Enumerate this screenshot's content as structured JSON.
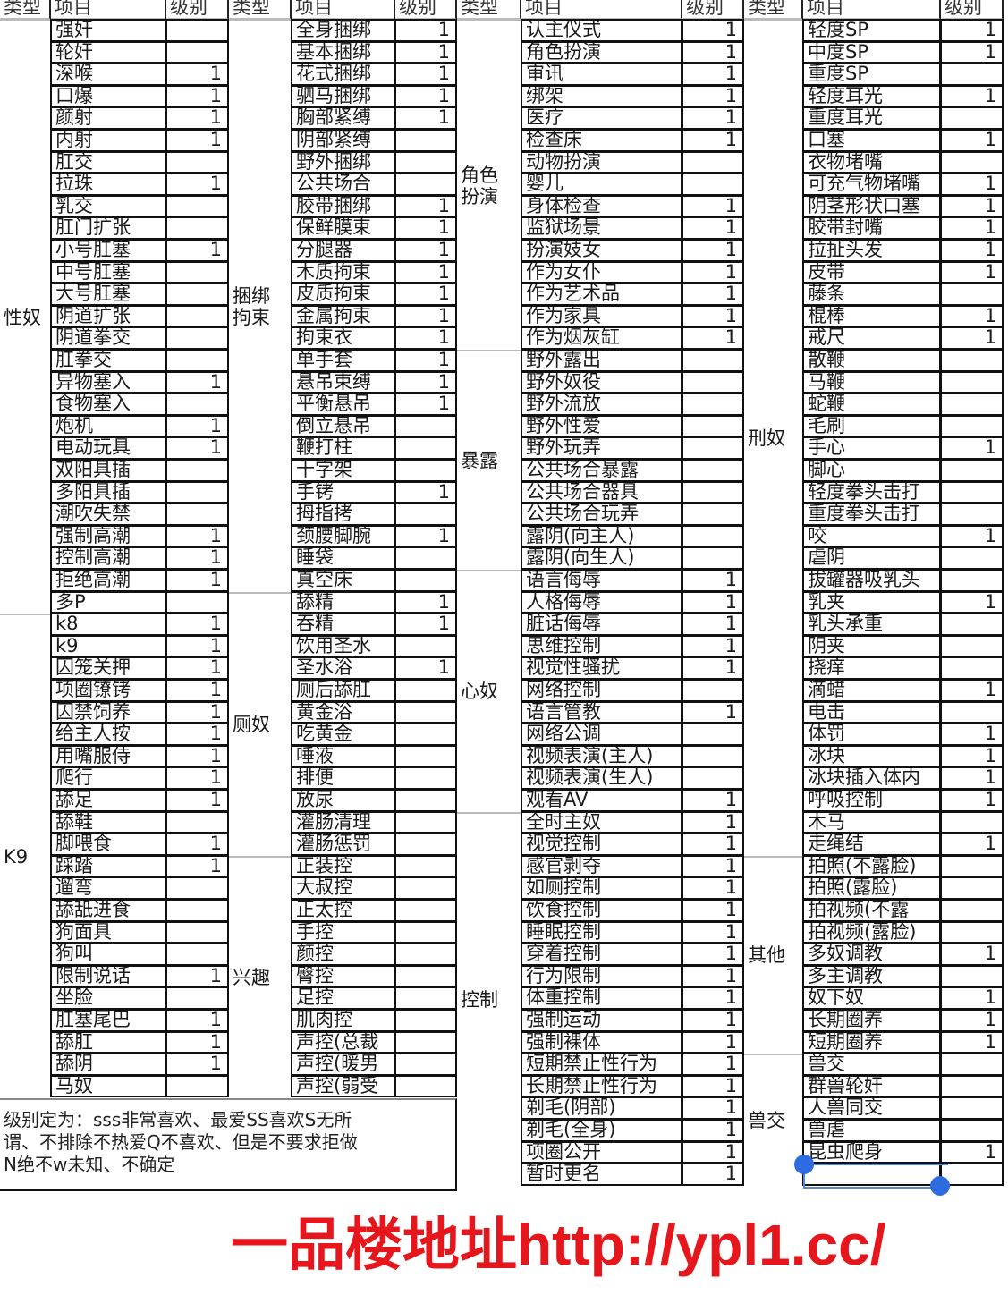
{
  "headers": {
    "type": "类型",
    "item": "项目",
    "level": "级别"
  },
  "columns": [
    {
      "groups": [
        {
          "type": "性奴",
          "items": [
            {
              "name": "强奸",
              "level": ""
            },
            {
              "name": "轮奸",
              "level": ""
            },
            {
              "name": "深喉",
              "level": "1"
            },
            {
              "name": "口爆",
              "level": "1"
            },
            {
              "name": "颜射",
              "level": "1"
            },
            {
              "name": "内射",
              "level": "1"
            },
            {
              "name": "肛交",
              "level": ""
            },
            {
              "name": "拉珠",
              "level": "1"
            },
            {
              "name": "乳交",
              "level": ""
            },
            {
              "name": "肛门扩张",
              "level": ""
            },
            {
              "name": "小号肛塞",
              "level": "1"
            },
            {
              "name": "中号肛塞",
              "level": ""
            },
            {
              "name": "大号肛塞",
              "level": ""
            },
            {
              "name": "阴道扩张",
              "level": ""
            },
            {
              "name": "阴道拳交",
              "level": ""
            },
            {
              "name": "肛拳交",
              "level": ""
            },
            {
              "name": "异物塞入",
              "level": "1"
            },
            {
              "name": "食物塞入",
              "level": ""
            },
            {
              "name": "炮机",
              "level": "1"
            },
            {
              "name": "电动玩具",
              "level": "1"
            },
            {
              "name": "双阳具插",
              "level": ""
            },
            {
              "name": "多阳具插",
              "level": ""
            },
            {
              "name": "潮吹失禁",
              "level": ""
            },
            {
              "name": "强制高潮",
              "level": "1"
            },
            {
              "name": "控制高潮",
              "level": "1"
            },
            {
              "name": "拒绝高潮",
              "level": "1"
            },
            {
              "name": "多P",
              "level": ""
            }
          ]
        },
        {
          "type": "K9",
          "items": [
            {
              "name": "k8",
              "level": "1"
            },
            {
              "name": "k9",
              "level": "1"
            },
            {
              "name": "囚笼关押",
              "level": "1"
            },
            {
              "name": "项圈镣铐",
              "level": "1"
            },
            {
              "name": "囚禁饲养",
              "level": "1"
            },
            {
              "name": "给主人按",
              "level": "1"
            },
            {
              "name": "用嘴服侍",
              "level": "1"
            },
            {
              "name": "爬行",
              "level": "1"
            },
            {
              "name": "舔足",
              "level": "1"
            },
            {
              "name": "舔鞋",
              "level": ""
            },
            {
              "name": "脚喂食",
              "level": "1"
            },
            {
              "name": "踩踏",
              "level": "1"
            },
            {
              "name": "遛弯",
              "level": ""
            },
            {
              "name": "舔舐进食",
              "level": ""
            },
            {
              "name": "狗面具",
              "level": ""
            },
            {
              "name": "狗叫",
              "level": ""
            },
            {
              "name": "限制说话",
              "level": "1"
            },
            {
              "name": "坐脸",
              "level": ""
            },
            {
              "name": "肛塞尾巴",
              "level": "1"
            },
            {
              "name": "舔肛",
              "level": "1"
            },
            {
              "name": "舔阴",
              "level": "1"
            },
            {
              "name": "马奴",
              "level": ""
            }
          ]
        }
      ]
    },
    {
      "groups": [
        {
          "type": "捆绑\n拘束",
          "items": [
            {
              "name": "全身捆绑",
              "level": "1"
            },
            {
              "name": "基本捆绑",
              "level": "1"
            },
            {
              "name": "花式捆绑",
              "level": "1"
            },
            {
              "name": "驷马捆绑",
              "level": "1"
            },
            {
              "name": "胸部紧缚",
              "level": "1"
            },
            {
              "name": "阴部紧缚",
              "level": ""
            },
            {
              "name": "野外捆绑",
              "level": ""
            },
            {
              "name": "公共场合",
              "level": ""
            },
            {
              "name": "胶带捆绑",
              "level": "1"
            },
            {
              "name": "保鲜膜束",
              "level": "1"
            },
            {
              "name": "分腿器",
              "level": "1"
            },
            {
              "name": "木质拘束",
              "level": "1"
            },
            {
              "name": "皮质拘束",
              "level": "1"
            },
            {
              "name": "金属拘束",
              "level": "1"
            },
            {
              "name": "拘束衣",
              "level": "1"
            },
            {
              "name": "单手套",
              "level": "1"
            },
            {
              "name": "悬吊束缚",
              "level": "1"
            },
            {
              "name": "平衡悬吊",
              "level": "1"
            },
            {
              "name": "倒立悬吊",
              "level": ""
            },
            {
              "name": "鞭打柱",
              "level": ""
            },
            {
              "name": "十字架",
              "level": ""
            },
            {
              "name": "手铐",
              "level": "1"
            },
            {
              "name": "拇指拷",
              "level": ""
            },
            {
              "name": "颈腰脚腕",
              "level": "1"
            },
            {
              "name": "睡袋",
              "level": ""
            },
            {
              "name": "真空床",
              "level": ""
            }
          ]
        },
        {
          "type": "厕奴",
          "items": [
            {
              "name": "舔精",
              "level": "1"
            },
            {
              "name": "吞精",
              "level": "1"
            },
            {
              "name": "饮用圣水",
              "level": ""
            },
            {
              "name": "圣水浴",
              "level": "1"
            },
            {
              "name": "厕后舔肛",
              "level": ""
            },
            {
              "name": "黄金浴",
              "level": ""
            },
            {
              "name": "吃黄金",
              "level": ""
            },
            {
              "name": "唾液",
              "level": ""
            },
            {
              "name": "排便",
              "level": ""
            },
            {
              "name": "放尿",
              "level": ""
            },
            {
              "name": "灌肠清理",
              "level": ""
            },
            {
              "name": "灌肠惩罚",
              "level": ""
            }
          ]
        },
        {
          "type": "兴趣",
          "items": [
            {
              "name": "正装控",
              "level": ""
            },
            {
              "name": "大叔控",
              "level": ""
            },
            {
              "name": "正太控",
              "level": ""
            },
            {
              "name": "手控",
              "level": ""
            },
            {
              "name": "颜控",
              "level": ""
            },
            {
              "name": "臀控",
              "level": ""
            },
            {
              "name": "足控",
              "level": ""
            },
            {
              "name": "肌肉控",
              "level": ""
            },
            {
              "name": "声控(总裁",
              "level": ""
            },
            {
              "name": "声控(暖男",
              "level": ""
            },
            {
              "name": "声控(弱受",
              "level": ""
            }
          ]
        }
      ]
    },
    {
      "groups": [
        {
          "type": "角色\n扮演",
          "items": [
            {
              "name": "认主仪式",
              "level": "1"
            },
            {
              "name": "角色扮演",
              "level": "1"
            },
            {
              "name": "审讯",
              "level": "1"
            },
            {
              "name": "绑架",
              "level": "1"
            },
            {
              "name": "医疗",
              "level": "1"
            },
            {
              "name": "检查床",
              "level": "1"
            },
            {
              "name": "动物扮演",
              "level": ""
            },
            {
              "name": "婴儿",
              "level": ""
            },
            {
              "name": "身体检查",
              "level": "1"
            },
            {
              "name": "监狱场景",
              "level": "1"
            },
            {
              "name": "扮演妓女",
              "level": "1"
            },
            {
              "name": "作为女仆",
              "level": "1"
            },
            {
              "name": "作为艺术品",
              "level": "1"
            },
            {
              "name": "作为家具",
              "level": "1"
            },
            {
              "name": "作为烟灰缸",
              "level": "1"
            }
          ]
        },
        {
          "type": "暴露",
          "items": [
            {
              "name": "野外露出",
              "level": ""
            },
            {
              "name": "野外奴役",
              "level": ""
            },
            {
              "name": "野外流放",
              "level": ""
            },
            {
              "name": "野外性爱",
              "level": ""
            },
            {
              "name": "野外玩弄",
              "level": ""
            },
            {
              "name": "公共场合暴露",
              "level": ""
            },
            {
              "name": "公共场合器具",
              "level": ""
            },
            {
              "name": "公共场合玩弄",
              "level": ""
            },
            {
              "name": "露阴(向主人)",
              "level": ""
            },
            {
              "name": "露阴(向生人)",
              "level": ""
            }
          ]
        },
        {
          "type": "心奴",
          "items": [
            {
              "name": "语言侮辱",
              "level": "1"
            },
            {
              "name": "人格侮辱",
              "level": "1"
            },
            {
              "name": "脏话侮辱",
              "level": "1"
            },
            {
              "name": "思维控制",
              "level": "1"
            },
            {
              "name": "视觉性骚扰",
              "level": "1"
            },
            {
              "name": "网络控制",
              "level": ""
            },
            {
              "name": "语言管教",
              "level": "1"
            },
            {
              "name": "网络公调",
              "level": ""
            },
            {
              "name": "视频表演(主人)",
              "level": ""
            },
            {
              "name": "视频表演(生人)",
              "level": ""
            },
            {
              "name": "观看AV",
              "level": "1"
            }
          ]
        },
        {
          "type": "控制",
          "items": [
            {
              "name": "全时主奴",
              "level": "1"
            },
            {
              "name": "视觉控制",
              "level": "1"
            },
            {
              "name": "感官剥夺",
              "level": "1"
            },
            {
              "name": "如厕控制",
              "level": "1"
            },
            {
              "name": "饮食控制",
              "level": "1"
            },
            {
              "name": "睡眠控制",
              "level": "1"
            },
            {
              "name": "穿着控制",
              "level": "1"
            },
            {
              "name": "行为限制",
              "level": "1"
            },
            {
              "name": "体重控制",
              "level": "1"
            },
            {
              "name": "强制运动",
              "level": "1"
            },
            {
              "name": "强制裸体",
              "level": "1"
            },
            {
              "name": "短期禁止性行为",
              "level": "1"
            },
            {
              "name": "长期禁止性行为",
              "level": "1"
            },
            {
              "name": "剃毛(阴部)",
              "level": "1"
            },
            {
              "name": "剃毛(全身)",
              "level": "1"
            },
            {
              "name": "项圈公开",
              "level": "1"
            },
            {
              "name": "暂时更名",
              "level": "1"
            }
          ]
        }
      ]
    },
    {
      "groups": [
        {
          "type": "刑奴",
          "items": [
            {
              "name": "轻度SP",
              "level": "1"
            },
            {
              "name": "中度SP",
              "level": "1"
            },
            {
              "name": "重度SP",
              "level": ""
            },
            {
              "name": "轻度耳光",
              "level": "1"
            },
            {
              "name": "重度耳光",
              "level": ""
            },
            {
              "name": "口塞",
              "level": "1"
            },
            {
              "name": "衣物堵嘴",
              "level": ""
            },
            {
              "name": "可充气物堵嘴",
              "level": "1"
            },
            {
              "name": "阴茎形状口塞",
              "level": "1"
            },
            {
              "name": "胶带封嘴",
              "level": "1"
            },
            {
              "name": "拉扯头发",
              "level": "1"
            },
            {
              "name": "皮带",
              "level": "1"
            },
            {
              "name": "藤条",
              "level": ""
            },
            {
              "name": "棍棒",
              "level": "1"
            },
            {
              "name": "戒尺",
              "level": "1"
            },
            {
              "name": "散鞭",
              "level": ""
            },
            {
              "name": "马鞭",
              "level": ""
            },
            {
              "name": "蛇鞭",
              "level": ""
            },
            {
              "name": "毛刷",
              "level": ""
            },
            {
              "name": "手心",
              "level": "1"
            },
            {
              "name": "脚心",
              "level": ""
            },
            {
              "name": "轻度拳头击打",
              "level": ""
            },
            {
              "name": "重度拳头击打",
              "level": ""
            },
            {
              "name": "咬",
              "level": "1"
            },
            {
              "name": "虐阴",
              "level": ""
            },
            {
              "name": "拔罐器吸乳头",
              "level": ""
            },
            {
              "name": "乳夹",
              "level": "1"
            },
            {
              "name": "乳头承重",
              "level": ""
            },
            {
              "name": "阴夹",
              "level": ""
            },
            {
              "name": "挠痒",
              "level": ""
            },
            {
              "name": "滴蜡",
              "level": "1"
            },
            {
              "name": "电击",
              "level": ""
            },
            {
              "name": "体罚",
              "level": "1"
            },
            {
              "name": "冰块",
              "level": "1"
            },
            {
              "name": "冰块插入体内",
              "level": "1"
            },
            {
              "name": "呼吸控制",
              "level": "1"
            },
            {
              "name": "木马",
              "level": ""
            },
            {
              "name": "走绳结",
              "level": "1"
            }
          ]
        },
        {
          "type": "其他",
          "items": [
            {
              "name": "拍照(不露脸)",
              "level": ""
            },
            {
              "name": "拍照(露脸)",
              "level": ""
            },
            {
              "name": "拍视频(不露",
              "level": ""
            },
            {
              "name": "拍视频(露脸)",
              "level": ""
            },
            {
              "name": "多奴调教",
              "level": "1"
            },
            {
              "name": "多主调教",
              "level": ""
            },
            {
              "name": "奴下奴",
              "level": "1"
            },
            {
              "name": "长期圈养",
              "level": "1"
            },
            {
              "name": "短期圈养",
              "level": "1"
            }
          ]
        },
        {
          "type": "兽交",
          "items": [
            {
              "name": "兽交",
              "level": ""
            },
            {
              "name": "群兽轮奸",
              "level": ""
            },
            {
              "name": "人兽同交",
              "level": ""
            },
            {
              "name": "兽虐",
              "level": ""
            },
            {
              "name": "昆虫爬身",
              "level": "1"
            },
            {
              "name": "",
              "level": ""
            }
          ]
        }
      ]
    }
  ],
  "note": "级别定为：sss非常喜欢、最爱SS喜欢S无所\n谓、不排除不热爱Q不喜欢、但是不要求拒做\nN绝不w未知、不确定",
  "watermark": "一品楼地址http://ypl1.cc/",
  "colors": {
    "border": "#111111",
    "watermark": "#e5161c",
    "selection": "#2f6be0"
  }
}
